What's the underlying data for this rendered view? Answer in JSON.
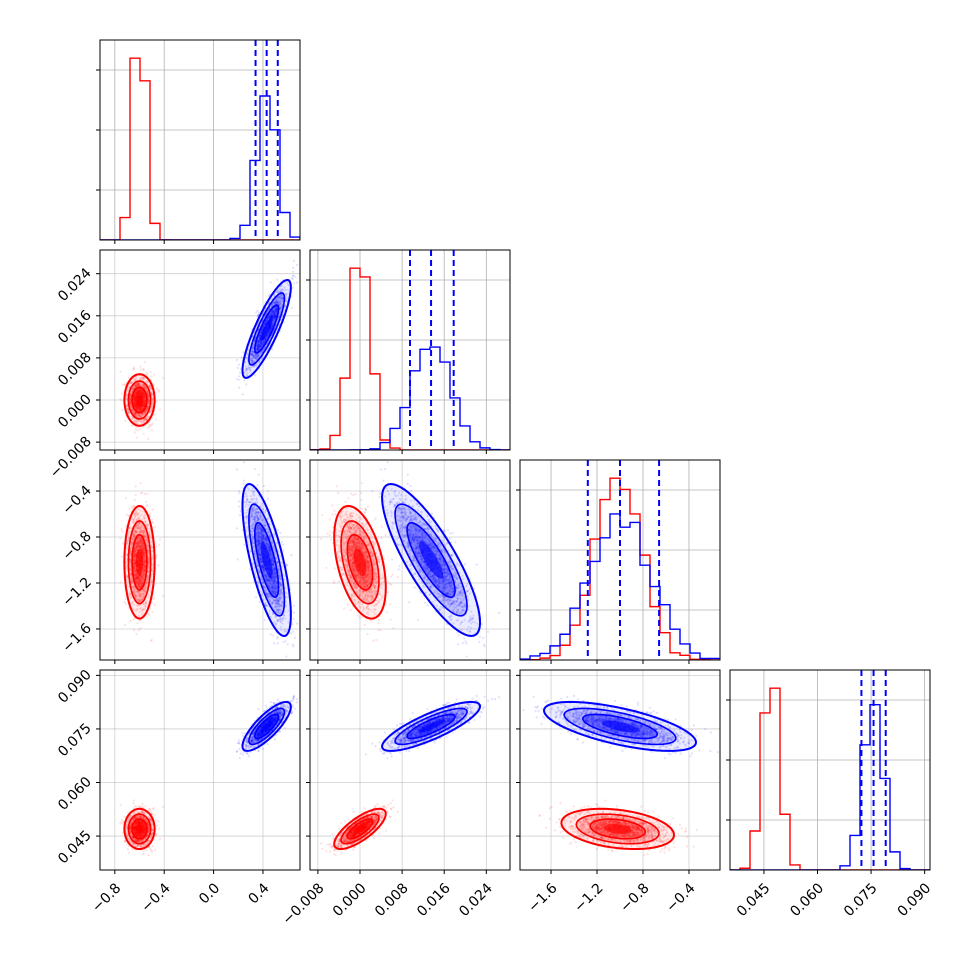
{
  "figure": {
    "type": "corner_plot",
    "colors": {
      "series_a": "#ff0000",
      "series_b": "#0000ff",
      "grid": "#b0b0b0",
      "axes": "#000000"
    }
  },
  "chart_data": {
    "type": "corner",
    "parameters": [
      {
        "range": [
          -0.92,
          0.7
        ],
        "ticks": [
          -0.8,
          -0.4,
          0.0,
          0.4
        ],
        "tick_labels": [
          "−0.8",
          "−0.4",
          "0.0",
          "0.4"
        ]
      },
      {
        "range": [
          -0.0095,
          0.0285
        ],
        "ticks": [
          -0.008,
          0.0,
          0.008,
          0.016,
          0.024
        ],
        "tick_labels": [
          "−0.008",
          "0.000",
          "0.008",
          "0.016",
          "0.024"
        ]
      },
      {
        "range": [
          -1.87,
          -0.13
        ],
        "ticks": [
          -1.6,
          -1.2,
          -0.8,
          -0.4
        ],
        "tick_labels": [
          "−1.6",
          "−1.2",
          "−0.8",
          "−0.4"
        ]
      },
      {
        "range": [
          0.0355,
          0.0915
        ],
        "ticks": [
          0.045,
          0.06,
          0.075,
          0.09
        ],
        "tick_labels": [
          "0.045",
          "0.060",
          "0.075",
          "0.090"
        ]
      }
    ],
    "series": [
      {
        "color": "#ff0000",
        "mean": [
          -0.6,
          0.0,
          -1.02,
          0.047
        ],
        "sd": [
          0.05,
          0.002,
          0.2,
          0.0023
        ],
        "corr": {
          "0-1": 0.0,
          "0-2": 0.0,
          "0-3": 0.0,
          "1-2": -0.45,
          "1-3": 0.75,
          "2-3": -0.3
        },
        "quantiles": null
      },
      {
        "color": "#0000ff",
        "mean": [
          0.43,
          0.0135,
          -1.0,
          0.0757
        ],
        "sd": [
          0.08,
          0.0038,
          0.27,
          0.0028
        ],
        "corr": {
          "0-1": 0.85,
          "0-2": -0.72,
          "0-3": 0.8,
          "1-2": -0.82,
          "1-3": 0.82,
          "2-3": -0.65
        },
        "quantiles": [
          [
            0.34,
            0.43,
            0.52
          ],
          [
            0.0095,
            0.0135,
            0.0178
          ],
          [
            -1.28,
            -1.0,
            -0.66
          ],
          [
            0.0723,
            0.0757,
            0.0791
          ]
        ]
      }
    ]
  }
}
